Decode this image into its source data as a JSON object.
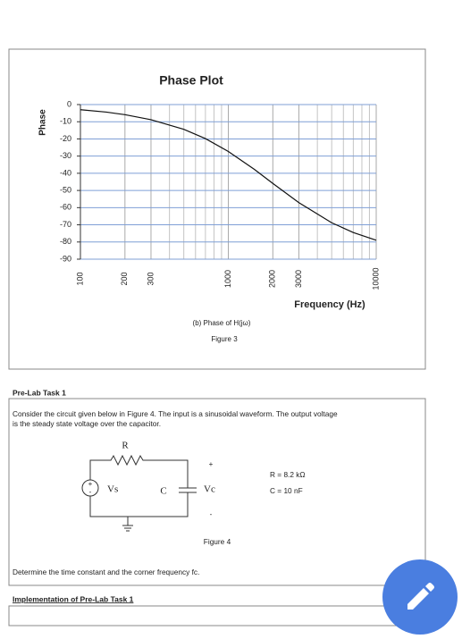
{
  "chart_data": {
    "type": "line",
    "title": "Phase Plot",
    "y_label": "Phase",
    "x_label": "Frequency (Hz)",
    "x": [
      100,
      150,
      200,
      300,
      500,
      700,
      1000,
      1500,
      2000,
      3000,
      5000,
      7000,
      10000
    ],
    "values": [
      -3,
      -4.4,
      -5.9,
      -8.8,
      -14.4,
      -19.8,
      -27.3,
      -37.7,
      -45.9,
      -57.1,
      -68.8,
      -74.5,
      -79
    ],
    "color": "#111111",
    "x_log": true,
    "xlim": [
      100,
      10000
    ],
    "xticks": [
      100,
      200,
      300,
      1000,
      2000,
      3000,
      10000
    ],
    "minor_xticks": [
      400,
      500,
      600,
      700,
      800,
      900,
      4000,
      5000,
      6000,
      7000,
      8000,
      9000
    ],
    "ylim": [
      -90,
      0
    ],
    "yticks": [
      0,
      -10,
      -20,
      -30,
      -40,
      -50,
      -60,
      -70,
      -80,
      -90
    ],
    "grid": true,
    "grid_color": "#7f9fd6"
  },
  "figure3": {
    "subcaption": "(b)   Phase of H(jω)",
    "caption": "Figure 3"
  },
  "task": {
    "heading": "Pre-Lab Task 1",
    "text_line1": "Consider the circuit given below in Figure 4. The input is a sinusoidal waveform. The output voltage",
    "text_line2": "is the steady state voltage over the capacitor.",
    "circuit": {
      "r": "R",
      "vs": "Vs",
      "c": "C",
      "vc": "Vc",
      "plus": "+",
      "minus": "-",
      "src_plus": "+",
      "src_minus": "-"
    },
    "r_value": "R = 8.2 kΩ",
    "c_value": "C = 10 nF",
    "caption": "Figure 4",
    "question": "Determine the time constant and the corner frequency fc."
  },
  "implementation": {
    "heading": "Implementation of Pre-Lab Task 1"
  }
}
